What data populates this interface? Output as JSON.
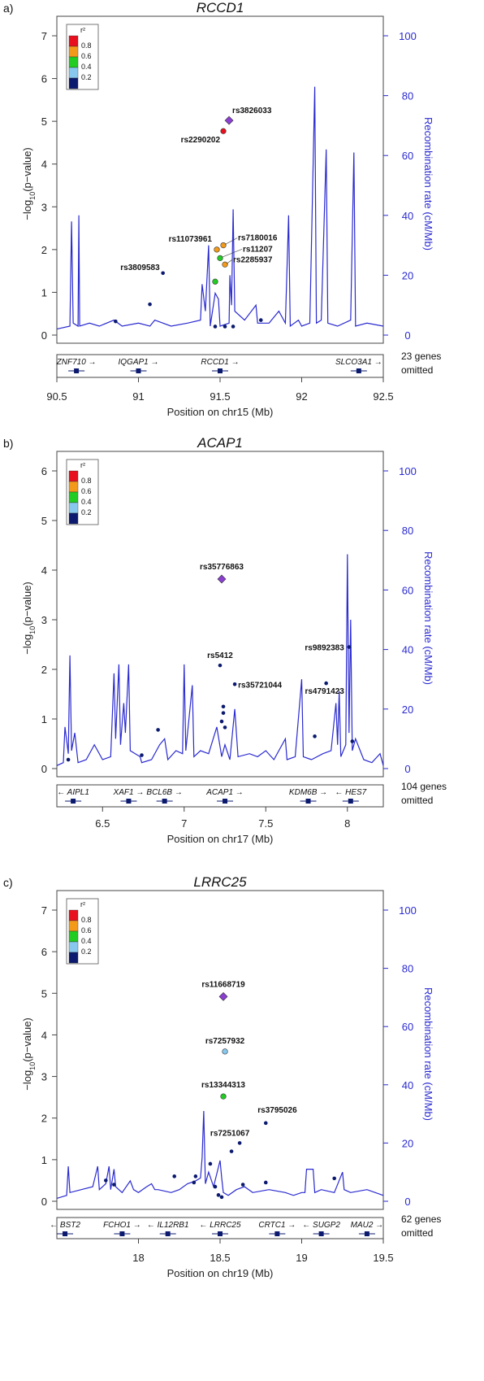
{
  "legend": {
    "title": "r²",
    "bins": [
      {
        "color": "#e8101e",
        "label": ""
      },
      {
        "color": "#f39a1a",
        "label": "0.8"
      },
      {
        "color": "#22cc22",
        "label": "0.6"
      },
      {
        "color": "#88c8ee",
        "label": "0.4"
      },
      {
        "color": "#0b1a6e",
        "label": "0.2"
      }
    ],
    "lead_snp_color": "#8a3fd0",
    "recomb_color": "#2a2ad0"
  },
  "chart_data": [
    {
      "type": "scatter",
      "panel_label": "a)",
      "title": "RCCD1",
      "xlabel": "Position on chr15 (Mb)",
      "ylabel": "−log10(p−value)",
      "ylabel_right": "Recombination rate (cM/Mb)",
      "xlim": [
        90.5,
        92.5
      ],
      "ylim": [
        0,
        7
      ],
      "ylim_right": [
        0,
        100
      ],
      "xticks": [
        "90.5",
        "91",
        "91.5",
        "92",
        "92.5"
      ],
      "yticks": [
        "0",
        "1",
        "2",
        "3",
        "4",
        "5",
        "6",
        "7"
      ],
      "rticks": [
        "0",
        "20",
        "40",
        "60",
        "80",
        "100"
      ],
      "genes_omitted": "23 genes omitted",
      "genes": [
        {
          "name": "ZNF710",
          "arrow": "→",
          "pos": 90.62
        },
        {
          "name": "IQGAP1",
          "arrow": "→",
          "pos": 91.0
        },
        {
          "name": "RCCD1",
          "arrow": "→",
          "pos": 91.5
        },
        {
          "name": "SLCO3A1",
          "arrow": "→",
          "pos": 92.35
        }
      ],
      "points": [
        {
          "x": 91.555,
          "y": 5.02,
          "r2": "lead",
          "label": "rs3826033"
        },
        {
          "x": 91.52,
          "y": 4.77,
          "r2": "red",
          "label": "rs2290202"
        },
        {
          "x": 91.48,
          "y": 2.0,
          "r2": "orange",
          "label": "rs11073961"
        },
        {
          "x": 91.52,
          "y": 2.1,
          "r2": "orange",
          "label": "rs7180016"
        },
        {
          "x": 91.5,
          "y": 1.8,
          "r2": "green",
          "label": "rs11207"
        },
        {
          "x": 91.53,
          "y": 1.65,
          "r2": "orange",
          "label": "rs2285937"
        },
        {
          "x": 91.47,
          "y": 1.25,
          "r2": "green",
          "label": ""
        },
        {
          "x": 91.15,
          "y": 1.45,
          "r2": "navy",
          "label": "rs3809583"
        },
        {
          "x": 91.07,
          "y": 0.72,
          "r2": "navy",
          "label": ""
        },
        {
          "x": 90.86,
          "y": 0.32,
          "r2": "navy",
          "label": ""
        },
        {
          "x": 91.47,
          "y": 0.2,
          "r2": "navy",
          "label": ""
        },
        {
          "x": 91.53,
          "y": 0.2,
          "r2": "navy",
          "label": ""
        },
        {
          "x": 91.58,
          "y": 0.2,
          "r2": "navy",
          "label": ""
        },
        {
          "x": 91.75,
          "y": 0.35,
          "r2": "navy",
          "label": ""
        }
      ],
      "recomb": [
        [
          90.5,
          2
        ],
        [
          90.58,
          3
        ],
        [
          90.59,
          38
        ],
        [
          90.6,
          4
        ],
        [
          90.63,
          3
        ],
        [
          90.635,
          40
        ],
        [
          90.64,
          3
        ],
        [
          90.7,
          4
        ],
        [
          90.76,
          3
        ],
        [
          90.85,
          5
        ],
        [
          90.9,
          3
        ],
        [
          91.0,
          4
        ],
        [
          91.07,
          3
        ],
        [
          91.1,
          5
        ],
        [
          91.2,
          3
        ],
        [
          91.3,
          4
        ],
        [
          91.38,
          5
        ],
        [
          91.39,
          17
        ],
        [
          91.41,
          8
        ],
        [
          91.43,
          30
        ],
        [
          91.44,
          3
        ],
        [
          91.47,
          14
        ],
        [
          91.49,
          12
        ],
        [
          91.5,
          3
        ],
        [
          91.555,
          4
        ],
        [
          91.56,
          20
        ],
        [
          91.57,
          10
        ],
        [
          91.58,
          42
        ],
        [
          91.59,
          8
        ],
        [
          91.65,
          5
        ],
        [
          91.72,
          10
        ],
        [
          91.73,
          4
        ],
        [
          91.8,
          4
        ],
        [
          91.86,
          8
        ],
        [
          91.9,
          4
        ],
        [
          91.92,
          40
        ],
        [
          91.93,
          3
        ],
        [
          91.98,
          5
        ],
        [
          92.0,
          3
        ],
        [
          92.05,
          4
        ],
        [
          92.08,
          83
        ],
        [
          92.09,
          4
        ],
        [
          92.12,
          5
        ],
        [
          92.15,
          62
        ],
        [
          92.16,
          4
        ],
        [
          92.22,
          3
        ],
        [
          92.3,
          5
        ],
        [
          92.32,
          61
        ],
        [
          92.33,
          3
        ],
        [
          92.4,
          4
        ],
        [
          92.5,
          3
        ]
      ]
    },
    {
      "type": "scatter",
      "panel_label": "b)",
      "title": "ACAP1",
      "xlabel": "Position on chr17 (Mb)",
      "ylabel": "−log10(p−value)",
      "ylabel_right": "Recombination rate (cM/Mb)",
      "xlim": [
        6.22,
        8.22
      ],
      "ylim": [
        0,
        6
      ],
      "ylim_right": [
        0,
        100
      ],
      "xticks": [
        "6.5",
        "7",
        "7.5",
        "8"
      ],
      "xtick_values": [
        6.5,
        7,
        7.5,
        8
      ],
      "yticks": [
        "0",
        "1",
        "2",
        "3",
        "4",
        "5",
        "6"
      ],
      "rticks": [
        "0",
        "20",
        "40",
        "60",
        "80",
        "100"
      ],
      "genes_omitted": "104 genes omitted",
      "genes": [
        {
          "name": "AIPL1",
          "arrow": "←",
          "pos": 6.32
        },
        {
          "name": "XAF1",
          "arrow": "→",
          "pos": 6.66
        },
        {
          "name": "BCL6B",
          "arrow": "→",
          "pos": 6.88
        },
        {
          "name": "ACAP1",
          "arrow": "→",
          "pos": 7.25
        },
        {
          "name": "KDM6B",
          "arrow": "→",
          "pos": 7.76
        },
        {
          "name": "HES7",
          "arrow": "←",
          "pos": 8.02
        }
      ],
      "points": [
        {
          "x": 7.23,
          "y": 3.82,
          "r2": "lead",
          "label": "rs35776863"
        },
        {
          "x": 7.22,
          "y": 2.08,
          "r2": "navy",
          "label": "rs5412"
        },
        {
          "x": 7.31,
          "y": 1.7,
          "r2": "navy",
          "label": "rs35721044"
        },
        {
          "x": 8.01,
          "y": 2.45,
          "r2": "navy",
          "label": "rs9892383"
        },
        {
          "x": 7.87,
          "y": 1.72,
          "r2": "navy",
          "label": "rs4791423"
        },
        {
          "x": 7.24,
          "y": 1.25,
          "r2": "navy",
          "label": ""
        },
        {
          "x": 7.24,
          "y": 1.12,
          "r2": "navy",
          "label": ""
        },
        {
          "x": 7.23,
          "y": 0.95,
          "r2": "navy",
          "label": ""
        },
        {
          "x": 7.25,
          "y": 0.83,
          "r2": "navy",
          "label": ""
        },
        {
          "x": 6.84,
          "y": 0.78,
          "r2": "navy",
          "label": ""
        },
        {
          "x": 7.8,
          "y": 0.65,
          "r2": "navy",
          "label": ""
        },
        {
          "x": 8.03,
          "y": 0.55,
          "r2": "navy",
          "label": ""
        },
        {
          "x": 6.74,
          "y": 0.27,
          "r2": "navy",
          "label": ""
        },
        {
          "x": 6.29,
          "y": 0.18,
          "r2": "navy",
          "label": ""
        }
      ],
      "recomb": [
        [
          6.22,
          1
        ],
        [
          6.26,
          2
        ],
        [
          6.27,
          14
        ],
        [
          6.29,
          5
        ],
        [
          6.3,
          38
        ],
        [
          6.31,
          6
        ],
        [
          6.33,
          12
        ],
        [
          6.35,
          2
        ],
        [
          6.4,
          3
        ],
        [
          6.45,
          8
        ],
        [
          6.5,
          3
        ],
        [
          6.55,
          4
        ],
        [
          6.57,
          32
        ],
        [
          6.58,
          10
        ],
        [
          6.6,
          35
        ],
        [
          6.61,
          8
        ],
        [
          6.63,
          22
        ],
        [
          6.64,
          12
        ],
        [
          6.66,
          35
        ],
        [
          6.67,
          6
        ],
        [
          6.73,
          4
        ],
        [
          6.74,
          2
        ],
        [
          6.8,
          3
        ],
        [
          6.85,
          8
        ],
        [
          6.88,
          10
        ],
        [
          6.9,
          3
        ],
        [
          6.95,
          6
        ],
        [
          6.99,
          5
        ],
        [
          7.0,
          35
        ],
        [
          7.01,
          6
        ],
        [
          7.05,
          28
        ],
        [
          7.06,
          4
        ],
        [
          7.1,
          6
        ],
        [
          7.15,
          5
        ],
        [
          7.2,
          14
        ],
        [
          7.23,
          4
        ],
        [
          7.25,
          8
        ],
        [
          7.28,
          3
        ],
        [
          7.31,
          20
        ],
        [
          7.33,
          4
        ],
        [
          7.4,
          5
        ],
        [
          7.45,
          4
        ],
        [
          7.5,
          6
        ],
        [
          7.55,
          3
        ],
        [
          7.62,
          10
        ],
        [
          7.63,
          3
        ],
        [
          7.68,
          4
        ],
        [
          7.72,
          30
        ],
        [
          7.73,
          4
        ],
        [
          7.78,
          3
        ],
        [
          7.85,
          5
        ],
        [
          7.9,
          6
        ],
        [
          7.93,
          22
        ],
        [
          7.94,
          8
        ],
        [
          7.95,
          26
        ],
        [
          7.96,
          4
        ],
        [
          7.99,
          8
        ],
        [
          8.0,
          72
        ],
        [
          8.01,
          12
        ],
        [
          8.02,
          50
        ],
        [
          8.03,
          6
        ],
        [
          8.05,
          10
        ],
        [
          8.1,
          3
        ],
        [
          8.15,
          2
        ],
        [
          8.2,
          5
        ],
        [
          8.22,
          1
        ]
      ]
    },
    {
      "type": "scatter",
      "panel_label": "c)",
      "title": "LRRC25",
      "xlabel": "Position on chr19 (Mb)",
      "ylabel": "−log10(p−value)",
      "ylabel_right": "Recombination rate (cM/Mb)",
      "xlim": [
        17.5,
        19.5
      ],
      "ylim": [
        0,
        7
      ],
      "ylim_right": [
        0,
        100
      ],
      "xticks": [
        "18",
        "18.5",
        "19",
        "19.5"
      ],
      "xtick_values": [
        18,
        18.5,
        19,
        19.5
      ],
      "yticks": [
        "0",
        "1",
        "2",
        "3",
        "4",
        "5",
        "6",
        "7"
      ],
      "rticks": [
        "0",
        "20",
        "40",
        "60",
        "80",
        "100"
      ],
      "genes_omitted": "62 genes omitted",
      "genes": [
        {
          "name": "BST2",
          "arrow": "←",
          "pos": 17.55
        },
        {
          "name": "FCHO1",
          "arrow": "→",
          "pos": 17.9
        },
        {
          "name": "IL12RB1",
          "arrow": "←",
          "pos": 18.18
        },
        {
          "name": "LRRC25",
          "arrow": "←",
          "pos": 18.5
        },
        {
          "name": "CRTC1",
          "arrow": "→",
          "pos": 18.85
        },
        {
          "name": "SUGP2",
          "arrow": "←",
          "pos": 19.12
        },
        {
          "name": "MAU2",
          "arrow": "→",
          "pos": 19.4
        }
      ],
      "points": [
        {
          "x": 18.52,
          "y": 4.92,
          "r2": "lead",
          "label": "rs11668719"
        },
        {
          "x": 18.53,
          "y": 3.6,
          "r2": "lightblue",
          "label": "rs7257932"
        },
        {
          "x": 18.52,
          "y": 2.52,
          "r2": "green",
          "label": "rs13344313"
        },
        {
          "x": 18.78,
          "y": 1.88,
          "r2": "navy",
          "label": "rs3795026"
        },
        {
          "x": 18.62,
          "y": 1.4,
          "r2": "navy",
          "label": "rs7251067"
        },
        {
          "x": 18.57,
          "y": 1.2,
          "r2": "navy",
          "label": ""
        },
        {
          "x": 18.44,
          "y": 0.9,
          "r2": "navy",
          "label": ""
        },
        {
          "x": 18.35,
          "y": 0.6,
          "r2": "navy",
          "label": ""
        },
        {
          "x": 18.34,
          "y": 0.45,
          "r2": "navy",
          "label": ""
        },
        {
          "x": 18.22,
          "y": 0.6,
          "r2": "navy",
          "label": ""
        },
        {
          "x": 17.8,
          "y": 0.5,
          "r2": "navy",
          "label": ""
        },
        {
          "x": 17.85,
          "y": 0.4,
          "r2": "navy",
          "label": ""
        },
        {
          "x": 18.64,
          "y": 0.4,
          "r2": "navy",
          "label": ""
        },
        {
          "x": 18.78,
          "y": 0.45,
          "r2": "navy",
          "label": ""
        },
        {
          "x": 19.2,
          "y": 0.55,
          "r2": "navy",
          "label": ""
        },
        {
          "x": 18.47,
          "y": 0.35,
          "r2": "navy",
          "label": ""
        },
        {
          "x": 18.49,
          "y": 0.15,
          "r2": "navy",
          "label": ""
        },
        {
          "x": 18.51,
          "y": 0.1,
          "r2": "navy",
          "label": ""
        }
      ],
      "recomb": [
        [
          17.5,
          1
        ],
        [
          17.56,
          2
        ],
        [
          17.57,
          12
        ],
        [
          17.58,
          3
        ],
        [
          17.65,
          4
        ],
        [
          17.72,
          5
        ],
        [
          17.75,
          12
        ],
        [
          17.76,
          4
        ],
        [
          17.8,
          6
        ],
        [
          17.82,
          12
        ],
        [
          17.83,
          4
        ],
        [
          17.85,
          11
        ],
        [
          17.86,
          5
        ],
        [
          17.9,
          3
        ],
        [
          17.95,
          7
        ],
        [
          17.97,
          4
        ],
        [
          18.0,
          3
        ],
        [
          18.05,
          5
        ],
        [
          18.08,
          6
        ],
        [
          18.1,
          4
        ],
        [
          18.12,
          4
        ],
        [
          18.2,
          3
        ],
        [
          18.25,
          4
        ],
        [
          18.3,
          6
        ],
        [
          18.35,
          7
        ],
        [
          18.38,
          8
        ],
        [
          18.39,
          15
        ],
        [
          18.4,
          31
        ],
        [
          18.41,
          6
        ],
        [
          18.43,
          10
        ],
        [
          18.46,
          5
        ],
        [
          18.5,
          14
        ],
        [
          18.51,
          8
        ],
        [
          18.52,
          3
        ],
        [
          18.55,
          2
        ],
        [
          18.6,
          4
        ],
        [
          18.65,
          5
        ],
        [
          18.7,
          3
        ],
        [
          18.8,
          4
        ],
        [
          18.9,
          3
        ],
        [
          18.95,
          2
        ],
        [
          19.0,
          3
        ],
        [
          19.02,
          3
        ],
        [
          19.03,
          11
        ],
        [
          19.07,
          11
        ],
        [
          19.08,
          3
        ],
        [
          19.12,
          4
        ],
        [
          19.2,
          3
        ],
        [
          19.25,
          10
        ],
        [
          19.26,
          4
        ],
        [
          19.3,
          3
        ],
        [
          19.4,
          4
        ],
        [
          19.5,
          2
        ]
      ]
    }
  ]
}
